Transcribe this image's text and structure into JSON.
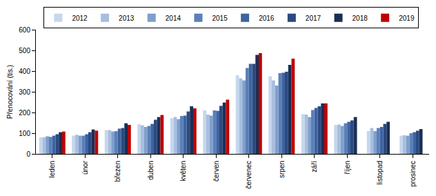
{
  "chart_data": {
    "type": "bar",
    "y_label": "Přenocování (tis.)",
    "categories": [
      "leden",
      "únor",
      "březen",
      "duben",
      "květen",
      "červen",
      "červenec",
      "srpen",
      "září",
      "říjen",
      "listopad",
      "prosinec"
    ],
    "series": [
      {
        "name": "2012",
        "color": "#c6d7ec",
        "values": [
          80,
          88,
          115,
          143,
          172,
          210,
          380,
          375,
          192,
          140,
          110,
          88
        ]
      },
      {
        "name": "2013",
        "color": "#a7bedf",
        "values": [
          80,
          92,
          115,
          138,
          178,
          190,
          365,
          355,
          190,
          142,
          125,
          90
        ]
      },
      {
        "name": "2014",
        "color": "#7f9fcc",
        "values": [
          85,
          88,
          108,
          130,
          168,
          185,
          355,
          330,
          178,
          135,
          110,
          88
        ]
      },
      {
        "name": "2015",
        "color": "#5a80b8",
        "values": [
          82,
          88,
          110,
          135,
          183,
          210,
          415,
          390,
          212,
          148,
          125,
          100
        ]
      },
      {
        "name": "2016",
        "color": "#3e63a0",
        "values": [
          88,
          95,
          122,
          145,
          185,
          208,
          435,
          392,
          222,
          155,
          130,
          105
        ]
      },
      {
        "name": "2017",
        "color": "#2a4a80",
        "values": [
          95,
          105,
          125,
          165,
          205,
          232,
          435,
          397,
          230,
          162,
          145,
          112
        ]
      },
      {
        "name": "2018",
        "color": "#1b2e55",
        "values": [
          105,
          118,
          148,
          178,
          230,
          248,
          478,
          430,
          244,
          178,
          155,
          120
        ]
      },
      {
        "name": "2019",
        "color": "#c00000",
        "values": [
          108,
          112,
          140,
          188,
          220,
          262,
          487,
          460,
          244,
          null,
          null,
          null
        ]
      }
    ],
    "ylim": [
      0,
      600
    ],
    "yticks": [
      0,
      100,
      200,
      300,
      400,
      500,
      600
    ],
    "grid": false,
    "legend": "top"
  }
}
